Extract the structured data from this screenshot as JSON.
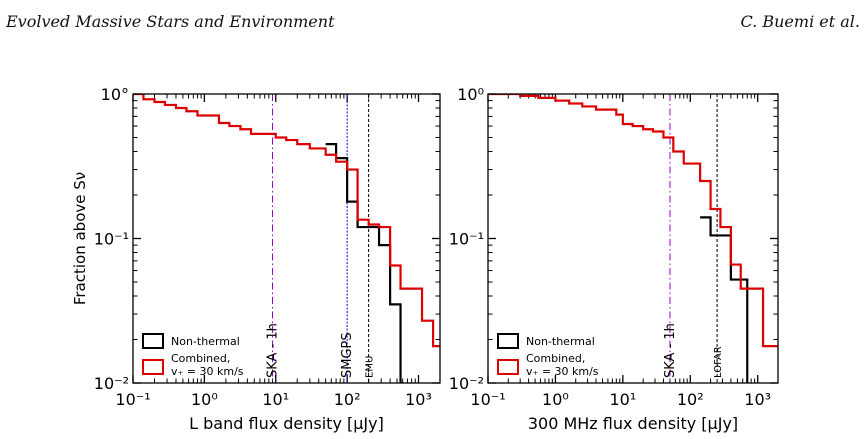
{
  "header": {
    "left": "Evolved Massive Stars and Environment",
    "right": "C. Buemi et al."
  },
  "chart_data": [
    {
      "type": "step",
      "xscale": "log",
      "yscale": "log",
      "xlim": [
        0.1,
        2000
      ],
      "ylim": [
        0.01,
        1
      ],
      "xlabel": "L band flux density [μJy]",
      "ylabel": "Fraction above Sν",
      "x_ticks": [
        "10⁻¹",
        "10⁰",
        "10¹",
        "10²",
        "10³"
      ],
      "y_ticks": [
        "10°",
        "10⁻¹",
        "10⁻²"
      ],
      "legend_position": "lower-left",
      "series": [
        {
          "name": "Non-thermal",
          "color": "#000000",
          "points": [
            [
              50,
              0.45
            ],
            [
              70,
              0.36
            ],
            [
              100,
              0.18
            ],
            [
              140,
              0.12
            ],
            [
              200,
              0.12
            ],
            [
              280,
              0.09
            ],
            [
              400,
              0.035
            ],
            [
              560,
              0.01
            ]
          ]
        },
        {
          "name": "Combined, v₊ = 30 km/s",
          "color": "#dd0000",
          "points": [
            [
              0.1,
              1.0
            ],
            [
              0.14,
              0.92
            ],
            [
              0.2,
              0.88
            ],
            [
              0.28,
              0.84
            ],
            [
              0.4,
              0.8
            ],
            [
              0.56,
              0.76
            ],
            [
              0.8,
              0.71
            ],
            [
              1.12,
              0.71
            ],
            [
              1.6,
              0.63
            ],
            [
              2.24,
              0.6
            ],
            [
              3.2,
              0.57
            ],
            [
              4.5,
              0.53
            ],
            [
              10,
              0.5
            ],
            [
              14,
              0.48
            ],
            [
              20,
              0.45
            ],
            [
              30,
              0.42
            ],
            [
              50,
              0.38
            ],
            [
              70,
              0.34
            ],
            [
              100,
              0.3
            ],
            [
              140,
              0.135
            ],
            [
              200,
              0.125
            ],
            [
              280,
              0.12
            ],
            [
              400,
              0.065
            ],
            [
              560,
              0.045
            ],
            [
              800,
              0.045
            ],
            [
              1120,
              0.027
            ],
            [
              1600,
              0.018
            ],
            [
              2000,
              0.018
            ]
          ]
        }
      ],
      "vlines": [
        {
          "x": 9.0,
          "label": "SKA - 1h",
          "color": "#9900cc",
          "style": "dashdot"
        },
        {
          "x": 100,
          "label": "SMGPS",
          "color": "#0000ee",
          "style": "dashed"
        },
        {
          "x": 200,
          "label": "EMU",
          "color": "#000000",
          "style": "dashed"
        }
      ]
    },
    {
      "type": "step",
      "xscale": "log",
      "yscale": "log",
      "xlim": [
        0.1,
        2000
      ],
      "ylim": [
        0.01,
        1
      ],
      "xlabel": "300 MHz flux density [μJy]",
      "x_ticks": [
        "10⁻¹",
        "10⁰",
        "10¹",
        "10²",
        "10³"
      ],
      "y_ticks": [
        "10⁰",
        "10⁻¹",
        "10⁻²"
      ],
      "legend_position": "lower-left",
      "series": [
        {
          "name": "Non-thermal",
          "color": "#000000",
          "points": [
            [
              140,
              0.14
            ],
            [
              200,
              0.105
            ],
            [
              280,
              0.105
            ],
            [
              400,
              0.052
            ],
            [
              560,
              0.052
            ],
            [
              700,
              0.01
            ]
          ]
        },
        {
          "name": "Combined, v₊ = 30 km/s",
          "color": "#dd0000",
          "points": [
            [
              0.1,
              1.0
            ],
            [
              0.3,
              0.97
            ],
            [
              0.56,
              0.94
            ],
            [
              1,
              0.9
            ],
            [
              1.6,
              0.86
            ],
            [
              2.5,
              0.82
            ],
            [
              4,
              0.78
            ],
            [
              8,
              0.72
            ],
            [
              10,
              0.62
            ],
            [
              14,
              0.6
            ],
            [
              20,
              0.57
            ],
            [
              28,
              0.55
            ],
            [
              40,
              0.5
            ],
            [
              56,
              0.4
            ],
            [
              80,
              0.33
            ],
            [
              140,
              0.25
            ],
            [
              200,
              0.16
            ],
            [
              280,
              0.12
            ],
            [
              400,
              0.066
            ],
            [
              560,
              0.045
            ],
            [
              800,
              0.045
            ],
            [
              1200,
              0.018
            ],
            [
              2000,
              0.018
            ]
          ]
        }
      ],
      "vlines": [
        {
          "x": 50,
          "label": "SKA - 1h",
          "color": "#9900cc",
          "style": "dashdot"
        },
        {
          "x": 250,
          "label": "LOFAR",
          "color": "#000000",
          "style": "dashed"
        }
      ]
    }
  ]
}
